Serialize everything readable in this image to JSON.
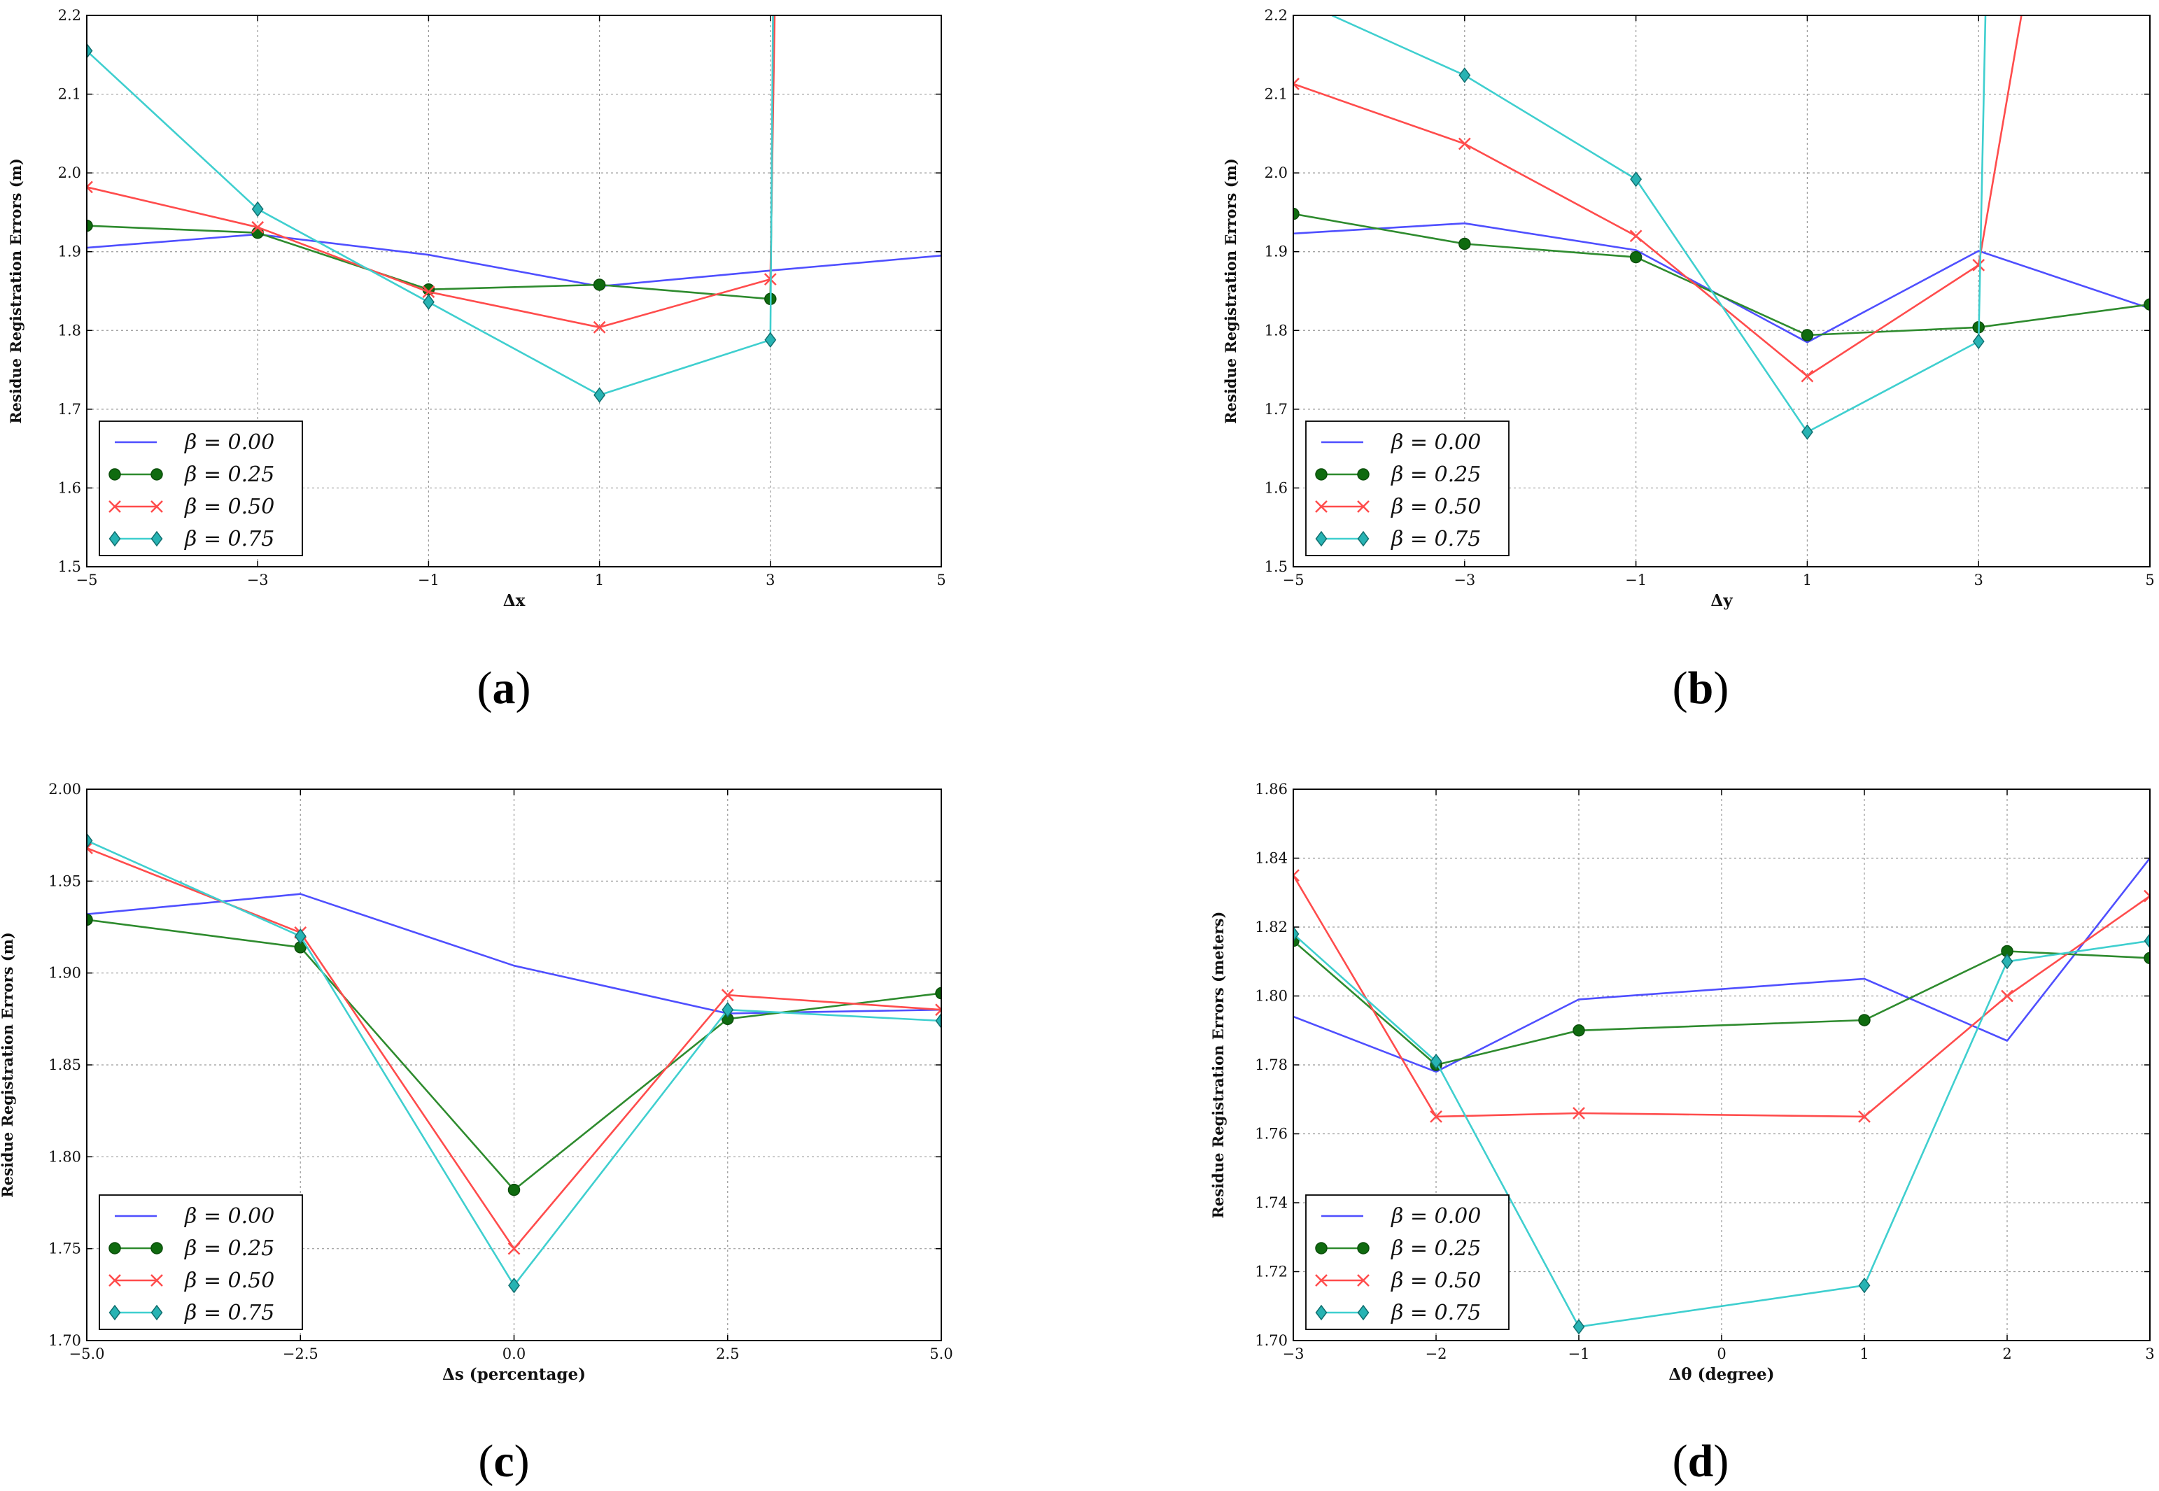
{
  "chart_data": [
    {
      "id": "a",
      "type": "line",
      "caption": "a",
      "xlabel": "Δx",
      "ylabel": "Residue Registration Errors (m)",
      "xlim": [
        -5,
        5
      ],
      "ylim": [
        1.5,
        2.2
      ],
      "xticks": [
        -5,
        -3,
        -1,
        1,
        3,
        5
      ],
      "xtick_labels": [
        "−5",
        "−3",
        "−1",
        "1",
        "3",
        "5"
      ],
      "yticks": [
        1.5,
        1.6,
        1.7,
        1.8,
        1.9,
        2.0,
        2.1,
        2.2
      ],
      "ytick_labels": [
        "1.5",
        "1.6",
        "1.7",
        "1.8",
        "1.9",
        "2.0",
        "2.1",
        "2.2"
      ],
      "grid": true,
      "legend_position": "bottom-left",
      "series": [
        {
          "name": "β = 0.00",
          "color": "#4f4fff",
          "marker": "none",
          "x": [
            -5,
            -3,
            -1,
            1,
            3,
            5
          ],
          "y": [
            1.905,
            1.922,
            1.896,
            1.856,
            1.876,
            1.895
          ]
        },
        {
          "name": "β = 0.25",
          "color": "#2e8b2e",
          "marker": "circle",
          "x": [
            -5,
            -3,
            -1,
            1,
            3,
            3.04
          ],
          "y": [
            1.933,
            1.924,
            1.852,
            1.858,
            1.84,
            2.2
          ]
        },
        {
          "name": "β = 0.50",
          "color": "#ff4c4c",
          "marker": "x",
          "x": [
            -5,
            -3,
            -1,
            1,
            3,
            3.05
          ],
          "y": [
            1.982,
            1.931,
            1.849,
            1.804,
            1.865,
            2.2
          ]
        },
        {
          "name": "β = 0.75",
          "color": "#3fcfcf",
          "marker": "diamond",
          "x": [
            -5,
            -3,
            -1,
            1,
            3,
            3.03
          ],
          "y": [
            2.155,
            1.954,
            1.836,
            1.718,
            1.788,
            2.2
          ]
        }
      ]
    },
    {
      "id": "b",
      "type": "line",
      "caption": "b",
      "xlabel": "Δy",
      "ylabel": "Residue Registration Errors (m)",
      "xlim": [
        -5,
        5
      ],
      "ylim": [
        1.5,
        2.2
      ],
      "xticks": [
        -5,
        -3,
        -1,
        1,
        3,
        5
      ],
      "xtick_labels": [
        "−5",
        "−3",
        "−1",
        "1",
        "3",
        "5"
      ],
      "yticks": [
        1.5,
        1.6,
        1.7,
        1.8,
        1.9,
        2.0,
        2.1,
        2.2
      ],
      "ytick_labels": [
        "1.5",
        "1.6",
        "1.7",
        "1.8",
        "1.9",
        "2.0",
        "2.1",
        "2.2"
      ],
      "grid": true,
      "legend_position": "bottom-left",
      "series": [
        {
          "name": "β = 0.00",
          "color": "#4f4fff",
          "marker": "none",
          "x": [
            -5,
            -3,
            -1,
            1,
            3,
            5
          ],
          "y": [
            1.923,
            1.936,
            1.902,
            1.785,
            1.901,
            1.828
          ]
        },
        {
          "name": "β = 0.25",
          "color": "#2e8b2e",
          "marker": "circle",
          "x": [
            -5,
            -3,
            -1,
            1,
            3,
            5
          ],
          "y": [
            1.948,
            1.91,
            1.893,
            1.794,
            1.804,
            1.833
          ]
        },
        {
          "name": "β = 0.50",
          "color": "#ff4c4c",
          "marker": "x",
          "x": [
            -5,
            -3,
            -1,
            1,
            3,
            3.5
          ],
          "y": [
            2.113,
            2.037,
            1.92,
            1.742,
            1.883,
            2.2
          ]
        },
        {
          "name": "β = 0.75",
          "color": "#3fcfcf",
          "marker": "diamond",
          "x": [
            -4.55,
            -3,
            -1,
            1,
            3,
            3.08
          ],
          "y": [
            2.2,
            2.124,
            1.992,
            1.671,
            1.786,
            2.2
          ]
        }
      ]
    },
    {
      "id": "c",
      "type": "line",
      "caption": "c",
      "xlabel": "Δs (percentage)",
      "ylabel": "Residue Registration Errors (m)",
      "xlim": [
        -5.0,
        5.0
      ],
      "ylim": [
        1.7,
        2.0
      ],
      "xticks": [
        -5.0,
        -2.5,
        0.0,
        2.5,
        5.0
      ],
      "xtick_labels": [
        "−5.0",
        "−2.5",
        "0.0",
        "2.5",
        "5.0"
      ],
      "yticks": [
        1.7,
        1.75,
        1.8,
        1.85,
        1.9,
        1.95,
        2.0
      ],
      "ytick_labels": [
        "1.70",
        "1.75",
        "1.80",
        "1.85",
        "1.90",
        "1.95",
        "2.00"
      ],
      "grid": true,
      "legend_position": "bottom-left",
      "series": [
        {
          "name": "β = 0.00",
          "color": "#4f4fff",
          "marker": "none",
          "x": [
            -5.0,
            -2.5,
            0.0,
            2.5,
            5.0
          ],
          "y": [
            1.932,
            1.943,
            1.904,
            1.878,
            1.88
          ]
        },
        {
          "name": "β = 0.25",
          "color": "#2e8b2e",
          "marker": "circle",
          "x": [
            -5.0,
            -2.5,
            0.0,
            2.5,
            5.0
          ],
          "y": [
            1.929,
            1.914,
            1.782,
            1.875,
            1.889
          ]
        },
        {
          "name": "β = 0.50",
          "color": "#ff4c4c",
          "marker": "x",
          "x": [
            -5.0,
            -2.5,
            0.0,
            2.5,
            5.0
          ],
          "y": [
            1.968,
            1.922,
            1.75,
            1.888,
            1.88
          ]
        },
        {
          "name": "β = 0.75",
          "color": "#3fcfcf",
          "marker": "diamond",
          "x": [
            -5.0,
            -2.5,
            0.0,
            2.5,
            5.0
          ],
          "y": [
            1.972,
            1.92,
            1.73,
            1.88,
            1.874
          ]
        }
      ]
    },
    {
      "id": "d",
      "type": "line",
      "caption": "d",
      "xlabel": "Δθ (degree)",
      "ylabel": "Residue Registration Errors (meters)",
      "xlim": [
        -3,
        3
      ],
      "ylim": [
        1.7,
        1.86
      ],
      "xticks": [
        -3,
        -2,
        -1,
        0,
        1,
        2,
        3
      ],
      "xtick_labels": [
        "−3",
        "−2",
        "−1",
        "0",
        "1",
        "2",
        "3"
      ],
      "yticks": [
        1.7,
        1.72,
        1.74,
        1.76,
        1.78,
        1.8,
        1.82,
        1.84,
        1.86
      ],
      "ytick_labels": [
        "1.70",
        "1.72",
        "1.74",
        "1.76",
        "1.78",
        "1.80",
        "1.82",
        "1.84",
        "1.86"
      ],
      "grid": true,
      "legend_position": "bottom-left",
      "series": [
        {
          "name": "β = 0.00",
          "color": "#4f4fff",
          "marker": "none",
          "x": [
            -3,
            -2,
            -1,
            1,
            2,
            3
          ],
          "y": [
            1.794,
            1.778,
            1.799,
            1.805,
            1.787,
            1.84
          ]
        },
        {
          "name": "β = 0.25",
          "color": "#2e8b2e",
          "marker": "circle",
          "x": [
            -3,
            -2,
            -1,
            1,
            2,
            3
          ],
          "y": [
            1.816,
            1.78,
            1.79,
            1.793,
            1.813,
            1.811
          ]
        },
        {
          "name": "β = 0.50",
          "color": "#ff4c4c",
          "marker": "x",
          "x": [
            -3,
            -2,
            -1,
            1,
            2,
            3
          ],
          "y": [
            1.835,
            1.765,
            1.766,
            1.765,
            1.8,
            1.829
          ]
        },
        {
          "name": "β = 0.75",
          "color": "#3fcfcf",
          "marker": "diamond",
          "x": [
            -3,
            -2,
            -1,
            1,
            2,
            3
          ],
          "y": [
            1.818,
            1.781,
            1.704,
            1.716,
            1.81,
            1.816
          ]
        }
      ]
    }
  ]
}
